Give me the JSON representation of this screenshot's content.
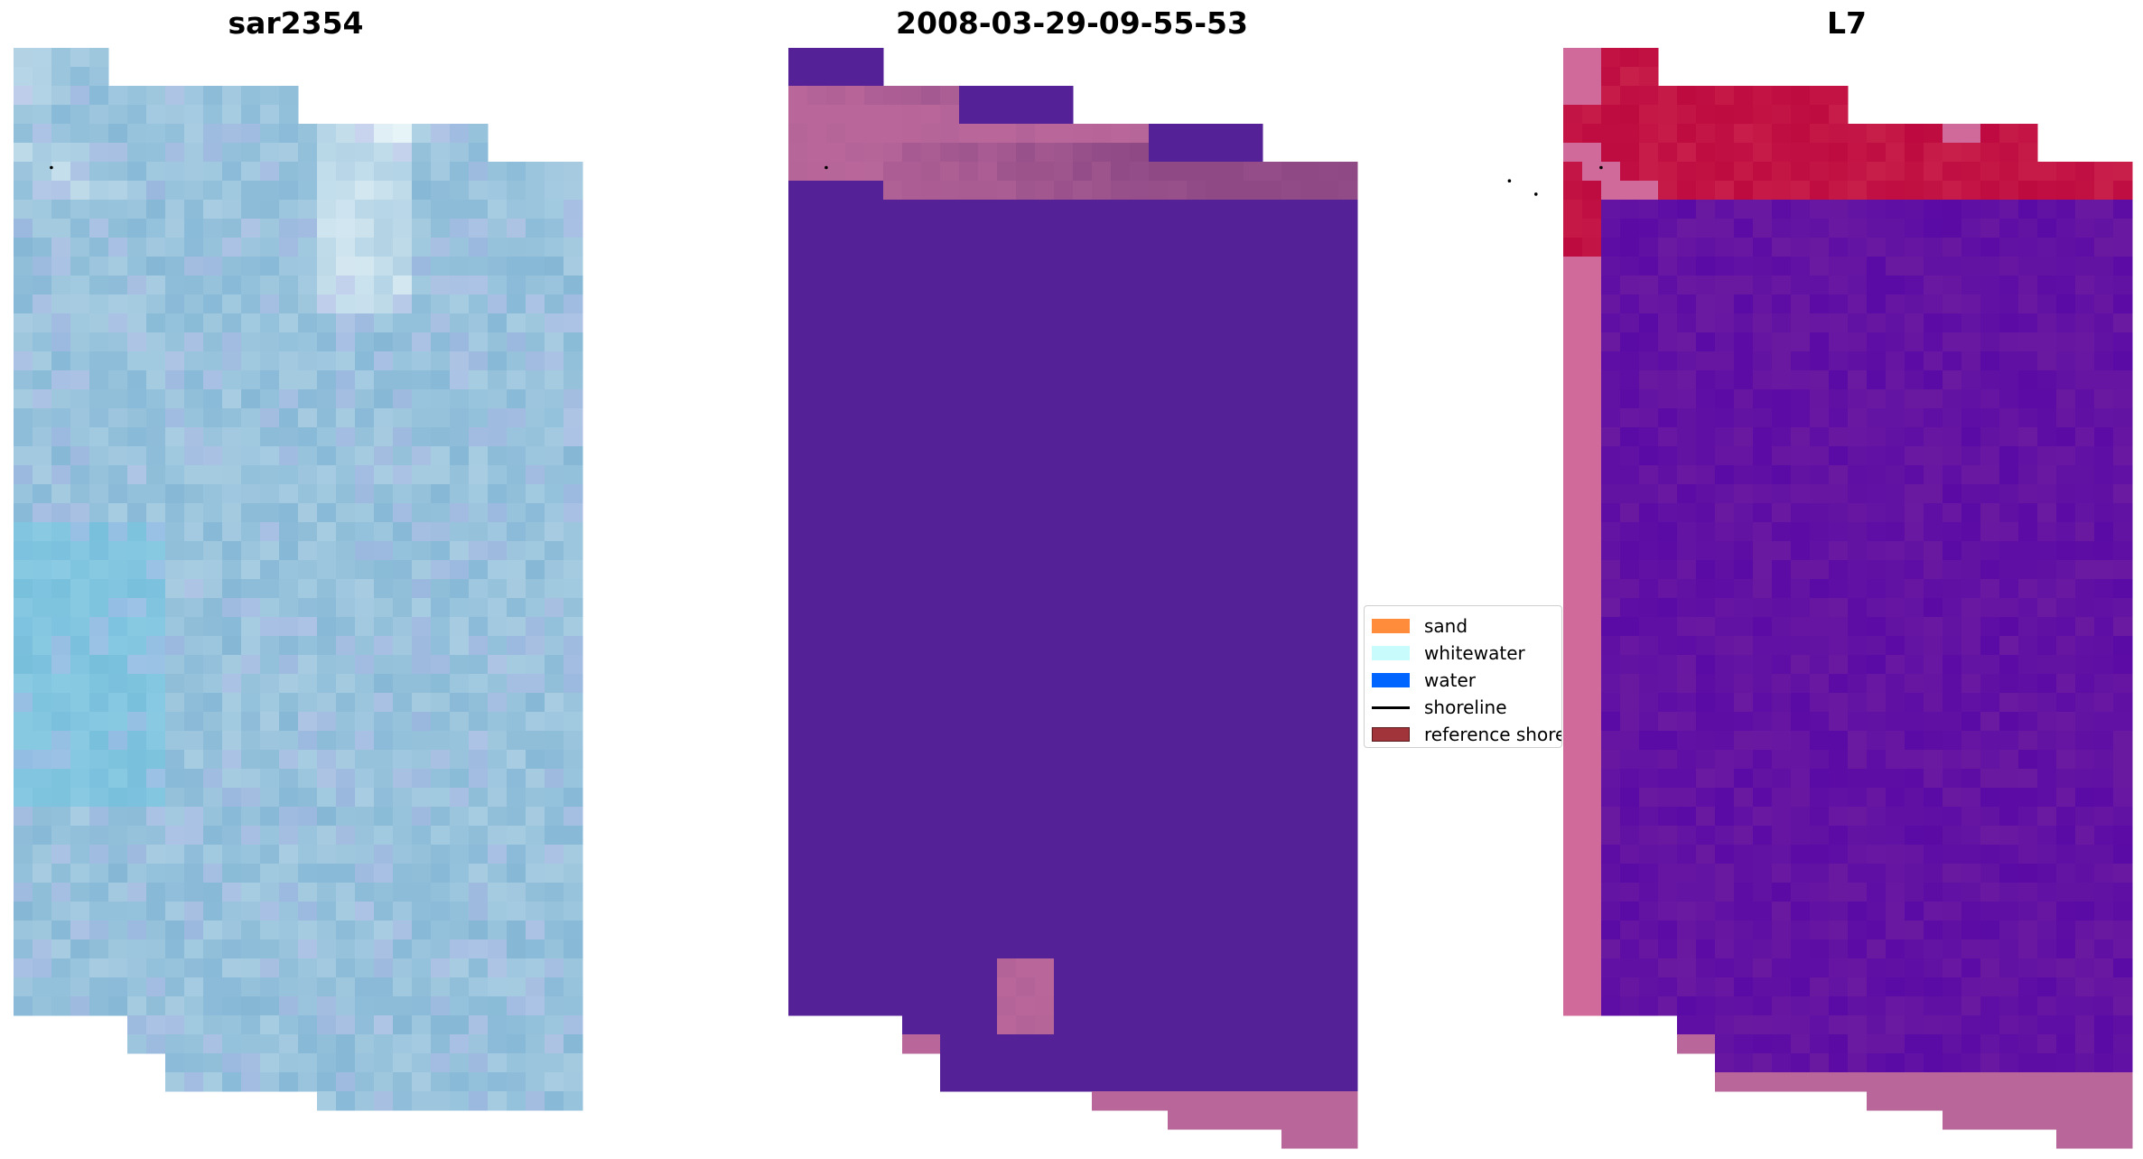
{
  "panels": [
    {
      "title": "sar2354",
      "kind": "rgb"
    },
    {
      "title": "2008-03-29-09-55-53",
      "kind": "classified"
    },
    {
      "title": "L7",
      "kind": "mndwi"
    }
  ],
  "legend": {
    "items": [
      {
        "label": "sand",
        "color": "#ff8c3a",
        "type": "patch"
      },
      {
        "label": "whitewater",
        "color": "#c8fbfb",
        "type": "patch"
      },
      {
        "label": "water",
        "color": "#0064ff",
        "type": "patch"
      },
      {
        "label": "shoreline",
        "color": "#000000",
        "type": "line"
      },
      {
        "label": "reference shoreline",
        "color": "#a0343a",
        "type": "patch"
      }
    ]
  },
  "colors": {
    "rgb_base": "#86b8d6",
    "rgb_bright": "#e8f4f8",
    "classified_water": "#542296",
    "classified_land": "#b9679a",
    "classified_mid": "#8f4a86",
    "mndwi_water": "#6a1aa0",
    "mndwi_land": "#c81e4a",
    "mndwi_edge": "#d06a9a",
    "shoreline_dots": "#000000"
  }
}
